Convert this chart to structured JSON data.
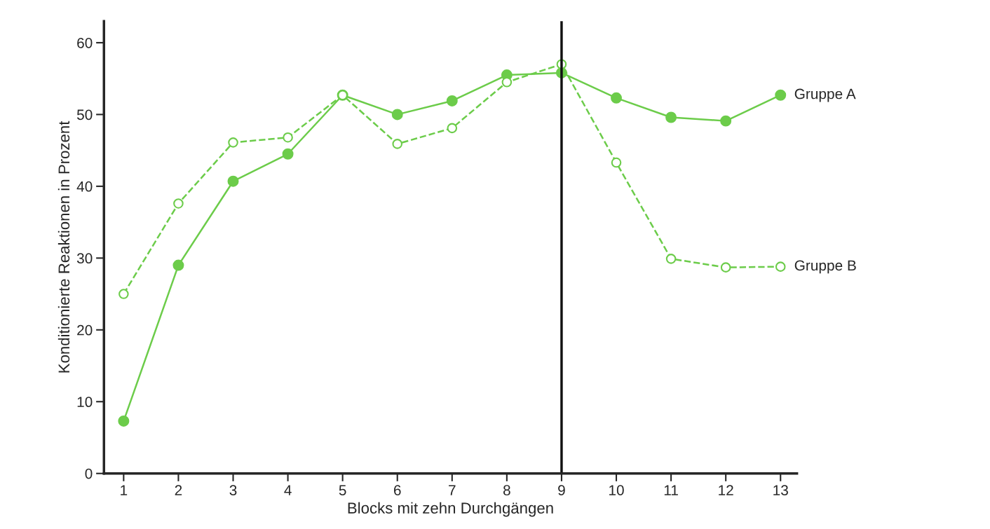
{
  "chart_data": {
    "type": "line",
    "xlabel": "Blocks mit zehn Durchgängen",
    "ylabel": "Konditionierte Reaktionen in Prozent",
    "x": [
      1,
      2,
      3,
      4,
      5,
      6,
      7,
      8,
      9,
      10,
      11,
      12,
      13
    ],
    "series": [
      {
        "name": "Gruppe A",
        "color": "#6ccc4a",
        "line_style": "solid",
        "values": [
          7.3,
          29.0,
          40.7,
          44.5,
          52.7,
          50.0,
          51.9,
          55.5,
          55.8,
          52.3,
          49.6,
          49.1,
          52.7
        ]
      },
      {
        "name": "Gruppe B",
        "color": "#6ccc4a",
        "line_style": "dashed",
        "values": [
          25.0,
          37.6,
          46.1,
          46.8,
          52.7,
          45.9,
          48.1,
          54.5,
          57.0,
          43.3,
          29.9,
          28.7,
          28.8
        ]
      }
    ],
    "marker": "circle",
    "xlim": [
      0.64,
      13.3
    ],
    "xticks": [
      1,
      2,
      3,
      4,
      5,
      6,
      7,
      8,
      9,
      10,
      11,
      12,
      13
    ],
    "ylim": [
      0,
      63
    ],
    "yticks": [
      0,
      10,
      20,
      30,
      40,
      50,
      60
    ],
    "ref_lines": [
      {
        "axis": "x",
        "value": 9,
        "color": "#111111"
      }
    ],
    "grid": false
  }
}
